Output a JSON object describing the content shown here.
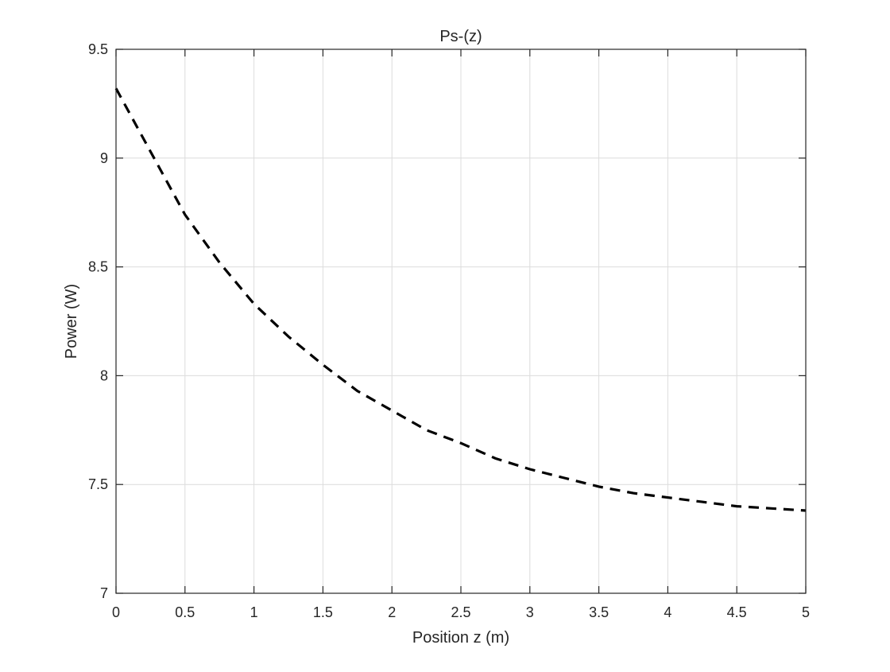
{
  "chart_data": {
    "type": "line",
    "title": "Ps-(z)",
    "xlabel": "Position z (m)",
    "ylabel": "Power (W)",
    "xlim": [
      0,
      5
    ],
    "ylim": [
      7,
      9.5
    ],
    "xticks": [
      0,
      0.5,
      1,
      1.5,
      2,
      2.5,
      3,
      3.5,
      4,
      4.5,
      5
    ],
    "xtick_labels": [
      "0",
      "0.5",
      "1",
      "1.5",
      "2",
      "2.5",
      "3",
      "3.5",
      "4",
      "4.5",
      "5"
    ],
    "yticks": [
      7,
      7.5,
      8,
      8.5,
      9,
      9.5
    ],
    "ytick_labels": [
      "7",
      "7.5",
      "8",
      "8.5",
      "9",
      "9.5"
    ],
    "grid": true,
    "series": [
      {
        "color": "#000000",
        "line_style": "dashed",
        "x": [
          0,
          0.25,
          0.5,
          0.75,
          1.0,
          1.25,
          1.5,
          1.75,
          2.0,
          2.25,
          2.5,
          2.75,
          3.0,
          3.25,
          3.5,
          3.75,
          4.0,
          4.25,
          4.5,
          4.75,
          5.0
        ],
        "y": [
          9.32,
          9.03,
          8.74,
          8.52,
          8.33,
          8.18,
          8.05,
          7.93,
          7.84,
          7.75,
          7.69,
          7.62,
          7.57,
          7.53,
          7.49,
          7.46,
          7.44,
          7.42,
          7.4,
          7.39,
          7.38
        ]
      }
    ]
  }
}
